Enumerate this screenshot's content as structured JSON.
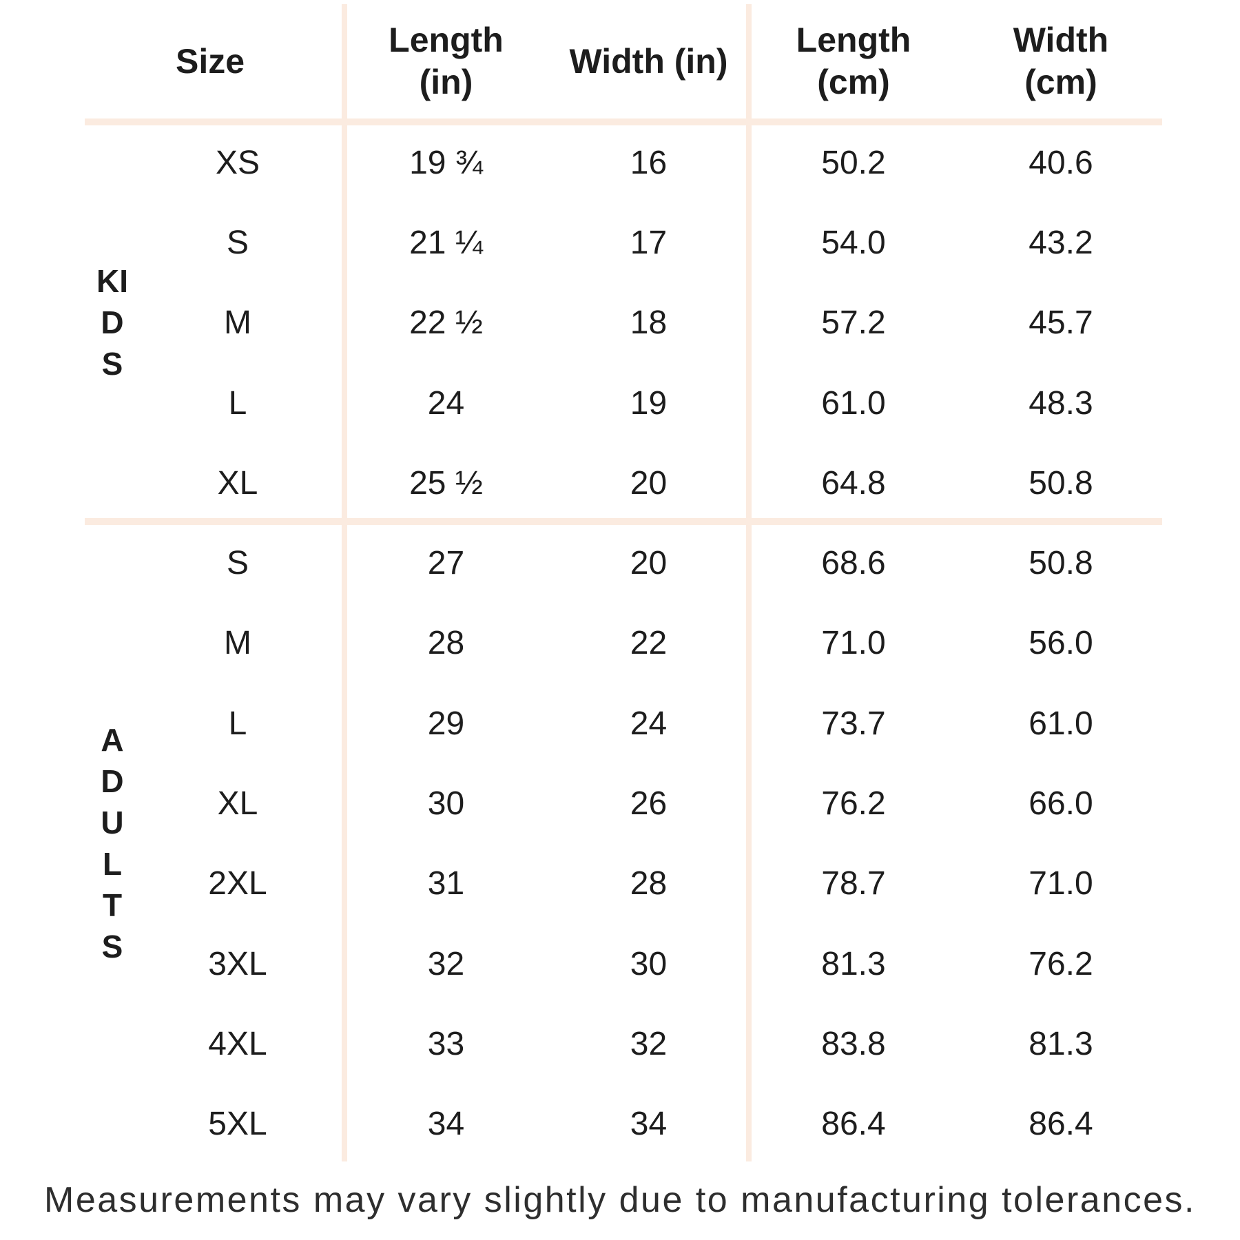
{
  "chart_data": {
    "type": "table",
    "columns": [
      "Size",
      "Length (in)",
      "Width (in)",
      "Length (cm)",
      "Width (cm)"
    ],
    "header_display": [
      "Size",
      "Length\n(in)",
      "Width (in)",
      "Length\n(cm)",
      "Width\n(cm)"
    ],
    "groups": [
      {
        "name": "KIDS",
        "rows": [
          [
            "XS",
            "19 ¾",
            "16",
            "50.2",
            "40.6"
          ],
          [
            "S",
            "21 ¼",
            "17",
            "54.0",
            "43.2"
          ],
          [
            "M",
            "22 ½",
            "18",
            "57.2",
            "45.7"
          ],
          [
            "L",
            "24",
            "19",
            "61.0",
            "48.3"
          ],
          [
            "XL",
            "25 ½",
            "20",
            "64.8",
            "50.8"
          ]
        ]
      },
      {
        "name": "ADULTS",
        "rows": [
          [
            "S",
            "27",
            "20",
            "68.6",
            "50.8"
          ],
          [
            "M",
            "28",
            "22",
            "71.0",
            "56.0"
          ],
          [
            "L",
            "29",
            "24",
            "73.7",
            "61.0"
          ],
          [
            "XL",
            "30",
            "26",
            "76.2",
            "66.0"
          ],
          [
            "2XL",
            "31",
            "28",
            "78.7",
            "71.0"
          ],
          [
            "3XL",
            "32",
            "30",
            "81.3",
            "76.2"
          ],
          [
            "4XL",
            "33",
            "32",
            "83.8",
            "81.3"
          ],
          [
            "5XL",
            "34",
            "34",
            "86.4",
            "86.4"
          ]
        ]
      }
    ],
    "footnote": "Measurements may vary slightly due to manufacturing tolerances.",
    "layout": {
      "grid": "off",
      "legend": "none"
    }
  },
  "colors": {
    "background": "#ffffff",
    "divider": "#fbebe0",
    "text": "#1d1d1d",
    "footnote_text": "#2e2e2e"
  }
}
